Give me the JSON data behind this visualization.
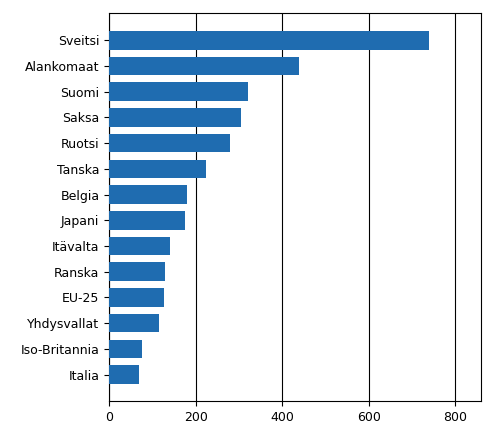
{
  "categories": [
    "Italia",
    "Iso-Britannia",
    "Yhdysvallat",
    "EU-25",
    "Ranska",
    "Itävalta",
    "Japani",
    "Belgia",
    "Tanska",
    "Ruotsi",
    "Saksa",
    "Suomi",
    "Alankomaat",
    "Sveitsi"
  ],
  "values": [
    70,
    75,
    115,
    128,
    130,
    140,
    175,
    180,
    225,
    280,
    305,
    320,
    440,
    740
  ],
  "bar_color": "#1F6CB0",
  "xlim": [
    0,
    860
  ],
  "xticks": [
    0,
    200,
    400,
    600,
    800
  ],
  "bar_height": 0.72,
  "figsize": [
    4.96,
    4.46
  ],
  "dpi": 100,
  "tick_fontsize": 9
}
